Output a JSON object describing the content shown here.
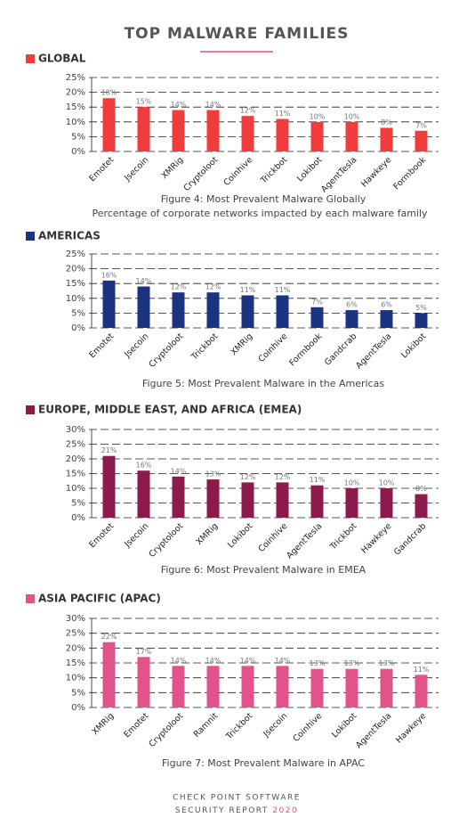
{
  "title": "TOP MALWARE FAMILIES",
  "footer": {
    "line1": "CHECK POINT SOFTWARE",
    "line2": "SECURITY REPORT",
    "year": "2020"
  },
  "chart_data": [
    {
      "type": "bar",
      "heading": "GLOBAL",
      "caption": "Figure 4: Most Prevalent Malware Globally",
      "subcaption": "Percentage of corporate networks impacted by each malware family",
      "categories": [
        "Emotet",
        "Jsecoin",
        "XMRig",
        "Cryptoloot",
        "Coinhive",
        "Trickbot",
        "Lokibot",
        "AgentTesla",
        "Hawkeye",
        "Formbook"
      ],
      "values": [
        18,
        15,
        14,
        14,
        12,
        11,
        10,
        10,
        8,
        7
      ],
      "value_labels": [
        "18%",
        "15%",
        "14%",
        "14%",
        "12%",
        "11%",
        "10%",
        "10%",
        "8%",
        "7%"
      ],
      "color": "#f03c3c",
      "ylim": [
        0,
        25
      ],
      "yticks": [
        {
          "value": 0,
          "label": "0%"
        },
        {
          "value": 5,
          "label": "5%"
        },
        {
          "value": 10,
          "label": "10%"
        },
        {
          "value": 15,
          "label": "15%"
        },
        {
          "value": 20,
          "label": "20%"
        },
        {
          "value": 25,
          "label": "25%"
        }
      ],
      "grid": true
    },
    {
      "type": "bar",
      "heading": "AMERICAS",
      "caption": "Figure 5: Most Prevalent Malware in the Americas",
      "categories": [
        "Emotet",
        "Jsecoin",
        "Cryptoloot",
        "Trickbot",
        "XMRig",
        "Coinhive",
        "Formbook",
        "Gandcrab",
        "AgentTesla",
        "Lokibot"
      ],
      "values": [
        16,
        14,
        12,
        12,
        11,
        11,
        7,
        6,
        6,
        5
      ],
      "value_labels": [
        "16%",
        "14%",
        "12%",
        "12%",
        "11%",
        "11%",
        "7%",
        "6%",
        "6%",
        "5%"
      ],
      "color": "#1b3380",
      "ylim": [
        0,
        25
      ],
      "yticks": [
        {
          "value": 0,
          "label": "0%"
        },
        {
          "value": 5,
          "label": "5%"
        },
        {
          "value": 10,
          "label": "10%"
        },
        {
          "value": 15,
          "label": "15%"
        },
        {
          "value": 20,
          "label": "20%"
        },
        {
          "value": 25,
          "label": "25%"
        }
      ],
      "grid": true
    },
    {
      "type": "bar",
      "heading": "EUROPE, MIDDLE EAST, AND AFRICA (EMEA)",
      "caption": "Figure 6: Most Prevalent Malware in EMEA",
      "categories": [
        "Emotet",
        "Jsecoin",
        "Cryptoloot",
        "XMRig",
        "Lokibot",
        "Coinhive",
        "AgentTesla",
        "Trickbot",
        "Hawkeye",
        "Gandcrab"
      ],
      "values": [
        21,
        16,
        14,
        13,
        12,
        12,
        11,
        10,
        10,
        8
      ],
      "value_labels": [
        "21%",
        "16%",
        "14%",
        "13%",
        "12%",
        "12%",
        "11%",
        "10%",
        "10%",
        "8%"
      ],
      "color": "#8c1a4b",
      "ylim": [
        0,
        30
      ],
      "yticks": [
        {
          "value": 0,
          "label": "0%"
        },
        {
          "value": 5,
          "label": "5%"
        },
        {
          "value": 10,
          "label": "10%"
        },
        {
          "value": 15,
          "label": "15%"
        },
        {
          "value": 20,
          "label": "20%"
        },
        {
          "value": 25,
          "label": "25%"
        },
        {
          "value": 30,
          "label": "30%"
        }
      ],
      "grid": true
    },
    {
      "type": "bar",
      "heading": "ASIA PACIFIC (APAC)",
      "caption": "Figure 7: Most Prevalent Malware in APAC",
      "categories": [
        "XMRig",
        "Emotet",
        "Cryptoloot",
        "Ramnit",
        "Trickbot",
        "Jsecoin",
        "Coinhive",
        "Lokibot",
        "AgentTesla",
        "Hawkeye"
      ],
      "values": [
        22,
        17,
        14,
        14,
        14,
        14,
        13,
        13,
        13,
        11
      ],
      "value_labels": [
        "22%",
        "17%",
        "14%",
        "14%",
        "14%",
        "14%",
        "13%",
        "13%",
        "13%",
        "11%"
      ],
      "color": "#e2528b",
      "ylim": [
        0,
        30
      ],
      "yticks": [
        {
          "value": 0,
          "label": "0%"
        },
        {
          "value": 5,
          "label": "5%"
        },
        {
          "value": 10,
          "label": "10%"
        },
        {
          "value": 15,
          "label": "15%"
        },
        {
          "value": 20,
          "label": "20%"
        },
        {
          "value": 25,
          "label": "25%"
        },
        {
          "value": 30,
          "label": "30%"
        }
      ],
      "grid": true
    }
  ]
}
